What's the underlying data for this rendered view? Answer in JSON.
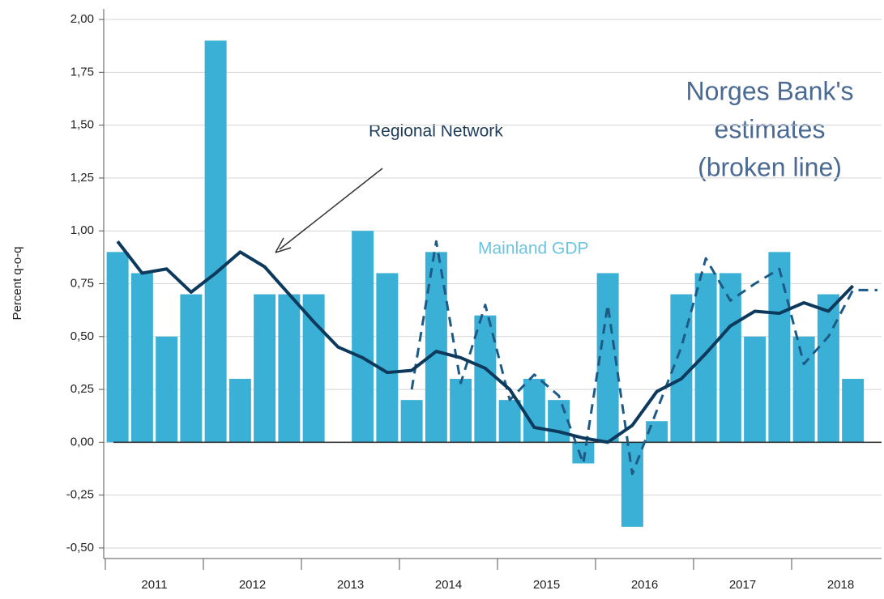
{
  "chart_data": {
    "type": "bar",
    "y_label": "Percent q-o-q",
    "annotations": [
      "Regional Network",
      "Mainland GDP",
      "Norges Bank's",
      "estimates",
      "(broken line)"
    ],
    "x_groups": [
      "2011",
      "2012",
      "2013",
      "2014",
      "2015",
      "2016",
      "2017",
      "2018"
    ],
    "categories": [
      null,
      null,
      null,
      null,
      null,
      null,
      null,
      null,
      null,
      null,
      null,
      null,
      null,
      null,
      null,
      null,
      null,
      null,
      null,
      null,
      null,
      null,
      null,
      null,
      null,
      null,
      null,
      null,
      null,
      null,
      null,
      null
    ],
    "series": [
      {
        "name": "Mainland GDP",
        "type": "bar",
        "color": "#3bb0d6",
        "values": [
          0.9,
          0.8,
          0.5,
          0.7,
          1.9,
          0.3,
          0.7,
          0.7,
          0.7,
          null,
          1.0,
          0.8,
          0.2,
          0.9,
          0.3,
          0.6,
          0.2,
          0.3,
          0.2,
          -0.1,
          0.8,
          -0.4,
          0.1,
          0.7,
          0.8,
          0.8,
          0.5,
          0.9,
          0.5,
          0.7,
          0.3,
          null
        ]
      },
      {
        "name": "Regional Network",
        "type": "line",
        "color": "#0d3a5c",
        "dash": false,
        "values": [
          0.95,
          0.8,
          0.82,
          0.71,
          0.8,
          0.9,
          0.83,
          0.7,
          0.57,
          0.45,
          0.4,
          0.33,
          0.34,
          0.43,
          0.4,
          0.35,
          0.25,
          0.07,
          0.05,
          0.02,
          0.0,
          0.08,
          0.24,
          0.3,
          0.42,
          0.55,
          0.62,
          0.61,
          0.66,
          0.62,
          0.74,
          null
        ]
      },
      {
        "name": "Norges Bank's estimates",
        "type": "line",
        "color": "#1d5a85",
        "dash": true,
        "values": [
          null,
          null,
          null,
          null,
          null,
          null,
          null,
          null,
          null,
          null,
          null,
          null,
          0.25,
          0.95,
          0.28,
          0.65,
          0.2,
          0.32,
          0.22,
          -0.1,
          0.65,
          -0.15,
          0.15,
          0.45,
          0.87,
          0.67,
          0.75,
          0.82,
          0.37,
          0.5,
          0.72,
          0.72
        ]
      }
    ],
    "ylim": [
      -0.55,
      2.05
    ],
    "yticks": [
      {
        "value": -0.5,
        "label": "-0,50"
      },
      {
        "value": -0.25,
        "label": "-0,25"
      },
      {
        "value": 0,
        "label": "0,00"
      },
      {
        "value": 0.25,
        "label": "0,25"
      },
      {
        "value": 0.5,
        "label": "0,50"
      },
      {
        "value": 0.75,
        "label": "0,75"
      },
      {
        "value": 1.0,
        "label": "1,00"
      },
      {
        "value": 1.25,
        "label": "1,25"
      },
      {
        "value": 1.5,
        "label": "1,50"
      },
      {
        "value": 1.75,
        "label": "1,75"
      },
      {
        "value": 2.0,
        "label": "2,00"
      }
    ],
    "grid": true
  }
}
